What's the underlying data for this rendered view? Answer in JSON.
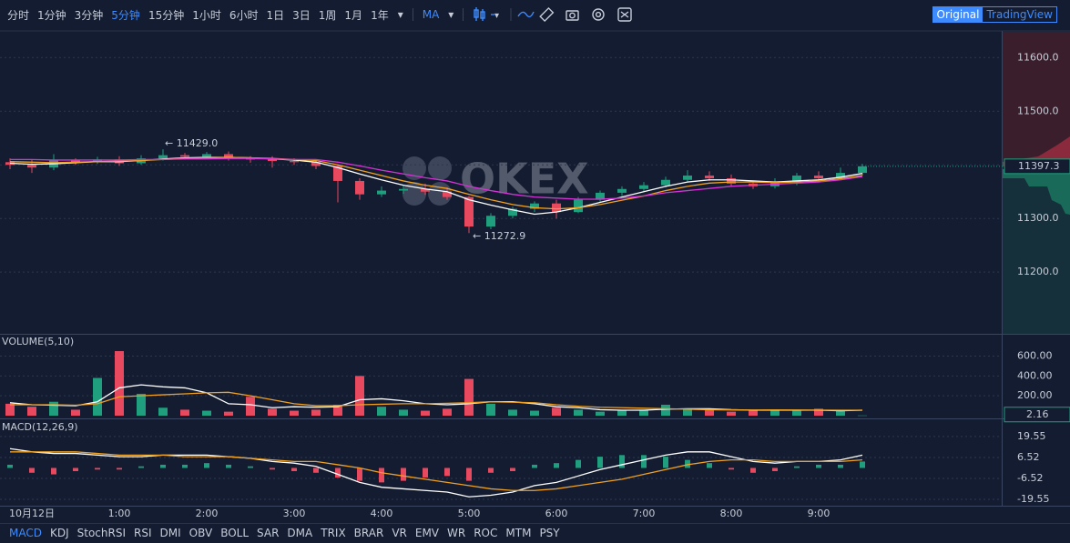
{
  "toolbar": {
    "intervals": [
      "分时",
      "1分钟",
      "3分钟",
      "5分钟",
      "15分钟",
      "1小时",
      "6小时",
      "1日",
      "3日",
      "1周",
      "1月",
      "1年"
    ],
    "active_interval": 3,
    "indicator_button": "MA",
    "views": [
      "Original",
      "TradingView"
    ],
    "active_view": 0
  },
  "watermark": "OKEX",
  "indicators": {
    "items": [
      "MACD",
      "KDJ",
      "StochRSI",
      "RSI",
      "DMI",
      "OBV",
      "BOLL",
      "SAR",
      "DMA",
      "TRIX",
      "BRAR",
      "VR",
      "EMV",
      "WR",
      "ROC",
      "MTM",
      "PSY"
    ],
    "active": 0
  },
  "chart_data": [
    {
      "type": "candlestick",
      "categories": [
        null,
        "10月12日",
        null,
        null,
        null,
        "1:00",
        null,
        null,
        null,
        "2:00",
        null,
        null,
        null,
        "3:00",
        null,
        null,
        null,
        "4:00",
        null,
        null,
        null,
        "5:00",
        null,
        null,
        null,
        "6:00",
        null,
        null,
        null,
        "7:00",
        null,
        null,
        null,
        "8:00",
        null,
        null,
        null,
        "9:00",
        null,
        null
      ],
      "open": [
        11405,
        11400,
        11395,
        11408,
        11405,
        11410,
        11403,
        11412,
        11418,
        11415,
        11420,
        11412,
        11410,
        11407,
        11405,
        11398,
        11370,
        11345,
        11352,
        11355,
        11350,
        11340,
        11285,
        11305,
        11318,
        11328,
        11312,
        11335,
        11348,
        11355,
        11362,
        11372,
        11380,
        11375,
        11365,
        11360,
        11368,
        11380,
        11375,
        11385
      ],
      "high": [
        11412,
        11410,
        11420,
        11412,
        11415,
        11416,
        11418,
        11429.0,
        11422,
        11424,
        11425,
        11416,
        11416,
        11412,
        11410,
        11400,
        11375,
        11360,
        11362,
        11365,
        11358,
        11342,
        11310,
        11322,
        11332,
        11335,
        11340,
        11352,
        11360,
        11368,
        11378,
        11390,
        11388,
        11382,
        11370,
        11375,
        11385,
        11388,
        11395,
        11402
      ],
      "low": [
        11392,
        11385,
        11390,
        11400,
        11402,
        11398,
        11400,
        11408,
        11410,
        11412,
        11408,
        11404,
        11395,
        11400,
        11392,
        11330,
        11335,
        11340,
        11346,
        11344,
        11335,
        11272.9,
        11280,
        11300,
        11312,
        11300,
        11310,
        11330,
        11342,
        11350,
        11358,
        11368,
        11370,
        11360,
        11355,
        11356,
        11362,
        11370,
        11372,
        11380
      ],
      "close": [
        11400,
        11395,
        11408,
        11405,
        11410,
        11403,
        11412,
        11418,
        11415,
        11420,
        11412,
        11410,
        11407,
        11405,
        11398,
        11370,
        11345,
        11352,
        11355,
        11350,
        11340,
        11285,
        11305,
        11318,
        11328,
        11312,
        11335,
        11348,
        11355,
        11362,
        11372,
        11380,
        11375,
        11365,
        11360,
        11368,
        11380,
        11375,
        11385,
        11397.3
      ],
      "up_color": "#1f9f7d",
      "down_color": "#e8495f",
      "lines": [
        {
          "color": "#ffffff",
          "values": [
            11403,
            11401,
            11402,
            11404,
            11406,
            11406,
            11408,
            11411,
            11413,
            11414,
            11414,
            11413,
            11411,
            11409,
            11405,
            11395,
            11383,
            11372,
            11362,
            11355,
            11350,
            11335,
            11325,
            11316,
            11308,
            11312,
            11320,
            11330,
            11340,
            11350,
            11360,
            11368,
            11372,
            11372,
            11370,
            11368,
            11370,
            11372,
            11377,
            11384
          ]
        },
        {
          "color": "#f0a020",
          "values": [
            11406,
            11405,
            11404,
            11405,
            11406,
            11407,
            11408,
            11410,
            11412,
            11413,
            11414,
            11413,
            11412,
            11410,
            11408,
            11400,
            11390,
            11380,
            11370,
            11362,
            11356,
            11345,
            11335,
            11326,
            11320,
            11318,
            11320,
            11326,
            11334,
            11342,
            11352,
            11360,
            11366,
            11368,
            11368,
            11367,
            11368,
            11370,
            11374,
            11380
          ]
        },
        {
          "color": "#d633d6",
          "values": [
            11410,
            11410,
            11409,
            11409,
            11409,
            11409,
            11410,
            11410,
            11411,
            11411,
            11412,
            11412,
            11411,
            11410,
            11410,
            11405,
            11398,
            11390,
            11383,
            11376,
            11370,
            11360,
            11352,
            11345,
            11340,
            11338,
            11336,
            11336,
            11338,
            11342,
            11348,
            11352,
            11356,
            11360,
            11362,
            11364,
            11366,
            11368,
            11372,
            11378
          ]
        }
      ],
      "annotations": [
        "← 11429.0",
        "← 11272.9"
      ],
      "ylim": [
        11085,
        11648
      ],
      "yticks": [
        {
          "value": 11200,
          "label": "11200.0"
        },
        {
          "value": 11300,
          "label": "11300.0"
        },
        {
          "value": 11400,
          "label": "11400.0"
        },
        {
          "value": 11500,
          "label": "11500.0"
        },
        {
          "value": 11600,
          "label": "11600.0"
        }
      ]
    },
    {
      "type": "bar",
      "title": "VOLUME(5,10)",
      "values": [
        120,
        90,
        140,
        60,
        380,
        650,
        220,
        80,
        60,
        50,
        40,
        190,
        70,
        50,
        60,
        110,
        400,
        90,
        60,
        50,
        70,
        370,
        120,
        60,
        50,
        80,
        60,
        40,
        50,
        60,
        110,
        70,
        60,
        40,
        50,
        60,
        50,
        70,
        50,
        2.16
      ],
      "lines": [
        {
          "color": "#ffffff",
          "values": [
            130,
            110,
            105,
            100,
            140,
            280,
            310,
            290,
            280,
            230,
            120,
            110,
            80,
            90,
            85,
            90,
            160,
            170,
            150,
            120,
            110,
            120,
            140,
            140,
            120,
            90,
            80,
            60,
            55,
            55,
            65,
            70,
            70,
            60,
            55,
            55,
            55,
            55,
            50,
            55
          ]
        },
        {
          "color": "#f0a020",
          "values": [
            110,
            110,
            110,
            105,
            120,
            190,
            200,
            210,
            220,
            230,
            235,
            200,
            160,
            120,
            100,
            100,
            110,
            115,
            120,
            120,
            125,
            130,
            140,
            135,
            130,
            110,
            95,
            85,
            80,
            75,
            70,
            65,
            60,
            58,
            57,
            58,
            57,
            56,
            55,
            55
          ]
        }
      ],
      "ylim": [
        0,
        815
      ],
      "yticks": [
        {
          "value": 200,
          "label": "200.00"
        },
        {
          "value": 400,
          "label": "400.00"
        },
        {
          "value": 600,
          "label": "600.00"
        }
      ]
    },
    {
      "type": "macd",
      "title": "MACD(12,26,9)",
      "values": [
        2,
        -3,
        -4,
        -2,
        -1,
        -1,
        1,
        2,
        2,
        3,
        2,
        1,
        -1,
        -2,
        -3,
        -6,
        -8,
        -9,
        -8,
        -6,
        -5,
        -8,
        -3,
        -2,
        2,
        3,
        5,
        7,
        8,
        8,
        7,
        5,
        3,
        -1,
        -3,
        -2,
        1,
        2,
        2,
        4
      ],
      "up_color": "#1f9f7d",
      "down_color": "#e8495f",
      "lines": [
        {
          "color": "#ffffff",
          "values": [
            12,
            10,
            9,
            9,
            8,
            7,
            7,
            8,
            8,
            8,
            7,
            6,
            4,
            3,
            1,
            -4,
            -9,
            -12,
            -13,
            -14,
            -15,
            -18,
            -17,
            -15,
            -11,
            -9,
            -5,
            -1,
            2,
            5,
            8,
            10,
            10,
            7,
            4,
            3,
            4,
            4,
            5,
            8
          ]
        },
        {
          "color": "#f0a020",
          "values": [
            10,
            10,
            10,
            10,
            9,
            8,
            8,
            8,
            7,
            7,
            7,
            6,
            5,
            4,
            4,
            2,
            0,
            -3,
            -5,
            -7,
            -9,
            -11,
            -13,
            -14,
            -14,
            -13,
            -11,
            -9,
            -7,
            -4,
            -1,
            2,
            4,
            5,
            5,
            4,
            4,
            4,
            4,
            5
          ]
        }
      ],
      "ylim": [
        -23.5,
        29.7
      ],
      "yticks": [
        -19.55,
        -6.52,
        6.52,
        19.55
      ]
    }
  ]
}
